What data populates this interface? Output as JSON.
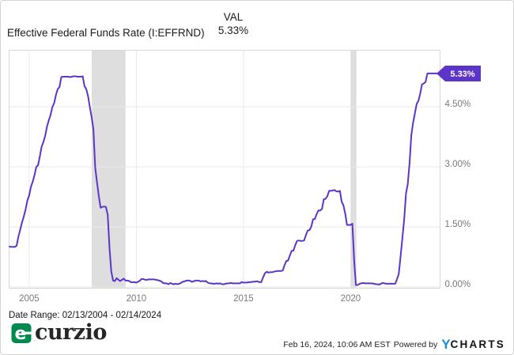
{
  "header": {
    "title": "Effective Federal Funds Rate (I:EFFRND)",
    "val_label": "VAL",
    "val_value": "5.33%"
  },
  "footer": {
    "date_range": "Date Range: 02/13/2004 - 02/14/2024",
    "logo_text": "curzio",
    "timestamp": "Feb 16, 2024, 10:06 AM EST",
    "powered_by": "Powered by",
    "ycharts_y": "Y",
    "ycharts_rest": "CHARTS"
  },
  "colors": {
    "line": "#5C35C8",
    "badge": "#5C35C8",
    "badge_text": "#ffffff",
    "recession_band": "#dedede",
    "grid": "#e9e9e9",
    "plot_border": "#d8d8d8",
    "axis_text": "#7a7a7a",
    "logo_green": "#00894E",
    "ycharts_blue": "#1B8BD6"
  },
  "chart_data": {
    "type": "line",
    "title": "Effective Federal Funds Rate (I:EFFRND)",
    "unit": "%",
    "current_value": 5.33,
    "end_label": "5.33%",
    "x_domain": [
      2004.083,
      2024.083
    ],
    "x_ticks": [
      2005,
      2010,
      2015,
      2020
    ],
    "x_tick_labels": [
      "2005",
      "2010",
      "2015",
      "2020"
    ],
    "y_tick_values": [
      0,
      1.5,
      3,
      4.5
    ],
    "y_ticks": [
      "0.00%",
      "1.50%",
      "3.00%",
      "4.50%"
    ],
    "ylim": [
      0,
      5.92
    ],
    "grid": true,
    "legend_position": "none",
    "recession_bands": [
      [
        2007.92,
        2009.5
      ],
      [
        2020.0,
        2020.27
      ]
    ],
    "series": [
      {
        "name": "Effective Federal Funds Rate",
        "x_start": 2004.083,
        "x_step_years": 0.0833,
        "values": [
          1.01,
          1.0,
          1.0,
          1.0,
          1.03,
          1.26,
          1.43,
          1.61,
          1.76,
          1.93,
          2.16,
          2.28,
          2.5,
          2.63,
          2.79,
          3.0,
          3.04,
          3.26,
          3.5,
          3.62,
          3.78,
          4.0,
          4.16,
          4.29,
          4.49,
          4.59,
          4.79,
          4.94,
          4.99,
          5.24,
          5.25,
          5.25,
          5.25,
          5.25,
          5.24,
          5.25,
          5.26,
          5.26,
          5.25,
          5.25,
          5.25,
          5.26,
          5.02,
          4.94,
          4.76,
          4.49,
          4.24,
          3.94,
          2.98,
          2.61,
          2.28,
          1.98,
          2.0,
          2.01,
          2.0,
          1.81,
          0.97,
          0.39,
          0.16,
          0.15,
          0.22,
          0.18,
          0.15,
          0.18,
          0.21,
          0.16,
          0.16,
          0.15,
          0.12,
          0.12,
          0.12,
          0.11,
          0.13,
          0.16,
          0.2,
          0.2,
          0.18,
          0.18,
          0.19,
          0.19,
          0.19,
          0.19,
          0.18,
          0.17,
          0.16,
          0.14,
          0.1,
          0.09,
          0.09,
          0.07,
          0.1,
          0.08,
          0.07,
          0.08,
          0.07,
          0.08,
          0.1,
          0.13,
          0.14,
          0.16,
          0.16,
          0.16,
          0.13,
          0.14,
          0.16,
          0.16,
          0.16,
          0.14,
          0.15,
          0.14,
          0.15,
          0.11,
          0.09,
          0.09,
          0.08,
          0.08,
          0.09,
          0.08,
          0.09,
          0.07,
          0.07,
          0.08,
          0.09,
          0.09,
          0.1,
          0.09,
          0.09,
          0.09,
          0.09,
          0.09,
          0.12,
          0.11,
          0.11,
          0.11,
          0.12,
          0.12,
          0.13,
          0.13,
          0.14,
          0.14,
          0.12,
          0.12,
          0.24,
          0.34,
          0.38,
          0.36,
          0.37,
          0.37,
          0.38,
          0.39,
          0.4,
          0.4,
          0.4,
          0.41,
          0.54,
          0.65,
          0.66,
          0.79,
          0.9,
          0.91,
          1.04,
          1.15,
          1.16,
          1.15,
          1.15,
          1.16,
          1.3,
          1.41,
          1.42,
          1.51,
          1.69,
          1.7,
          1.82,
          1.91,
          1.91,
          1.95,
          2.19,
          2.2,
          2.27,
          2.4,
          2.4,
          2.41,
          2.42,
          2.39,
          2.38,
          2.4,
          2.13,
          2.04,
          1.83,
          1.55,
          1.55,
          1.55,
          1.58,
          0.65,
          0.05,
          0.05,
          0.08,
          0.09,
          0.1,
          0.09,
          0.09,
          0.09,
          0.09,
          0.09,
          0.08,
          0.07,
          0.07,
          0.06,
          0.08,
          0.1,
          0.09,
          0.08,
          0.08,
          0.08,
          0.08,
          0.08,
          0.08,
          0.2,
          0.33,
          0.77,
          1.21,
          1.68,
          2.33,
          2.56,
          3.08,
          3.78,
          4.1,
          4.33,
          4.57,
          4.65,
          4.83,
          5.06,
          5.08,
          5.12,
          5.33,
          5.33,
          5.33,
          5.33,
          5.33,
          5.33,
          5.33
        ]
      }
    ]
  }
}
